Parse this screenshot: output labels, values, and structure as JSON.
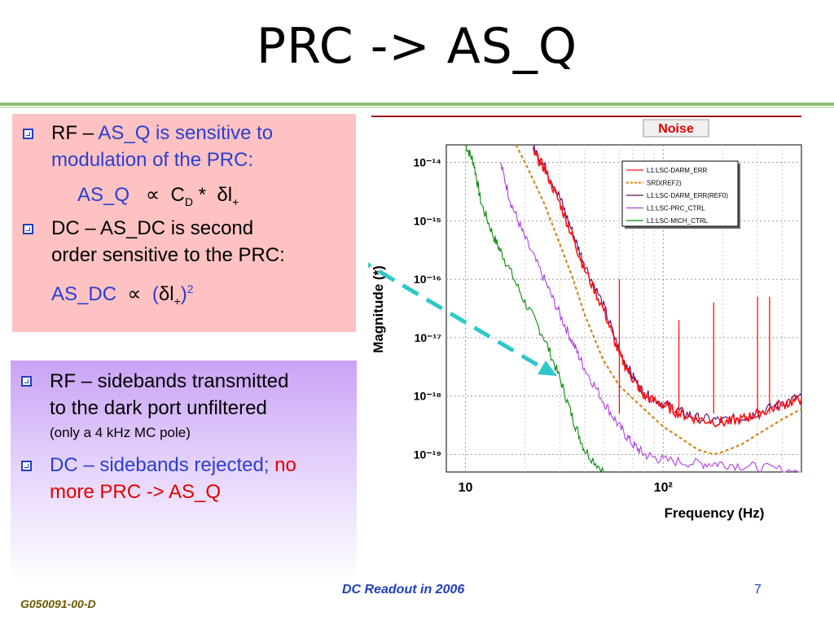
{
  "slide": {
    "title": "PRC -> AS_Q",
    "footer": "DC Readout in 2006",
    "page_number": "7",
    "doc_id": "G050091-00-D"
  },
  "box1": {
    "b1_a": "RF – ",
    "b1_b": "AS_Q is sensitive to",
    "b1_c": "modulation of the PRC:",
    "eq1_lhs": "AS_Q",
    "eq1_prop": "∝",
    "eq1_c": "C",
    "eq1_csub": "D",
    "eq1_star": " *",
    "eq1_delta": "δ",
    "eq1_l": "l",
    "eq1_lsub": "+",
    "b2_a": "DC – AS_DC is second",
    "b2_b": "order sensitive to the PRC:",
    "eq2_lhs": "AS_DC",
    "eq2_prop": "∝",
    "eq2_open": "(",
    "eq2_delta": "δ",
    "eq2_l": "l",
    "eq2_lsub": "+",
    "eq2_close": ")",
    "eq2_sup": "2"
  },
  "box2": {
    "b1_a": "RF – sidebands transmitted",
    "b1_b": "to the dark port unfiltered",
    "b1_c": "(only a 4 kHz MC pole)",
    "b2_a": "DC – sidebands rejected; ",
    "b2_b": "no",
    "b2_c": "more PRC -> AS_Q"
  },
  "chart_data": {
    "type": "line",
    "title": "Noise",
    "xlabel": "Frequency (Hz)",
    "ylabel": "Magnitude (*)",
    "x_scale": "log",
    "y_scale": "log",
    "xlim": [
      8,
      500
    ],
    "ylim": [
      5e-20,
      2e-14
    ],
    "x_ticks": [
      "10",
      "10²"
    ],
    "y_ticks": [
      "10⁻¹⁴",
      "10⁻¹⁵",
      "10⁻¹⁶",
      "10⁻¹⁷",
      "10⁻¹⁸",
      "10⁻¹⁹"
    ],
    "grid": true,
    "legend_placement": "top-right",
    "series": [
      {
        "name": "L1:LSC-DARM_ERR",
        "color": "#ff1010",
        "style": "solid",
        "x": [
          22,
          25,
          30,
          35,
          40,
          50,
          60,
          70,
          80,
          100,
          120,
          150,
          200,
          250,
          300,
          400,
          500
        ],
        "y": [
          1.5e-14,
          8e-15,
          2e-15,
          5e-16,
          1.5e-16,
          3e-17,
          5e-18,
          2e-18,
          1e-18,
          7e-19,
          5e-19,
          4e-19,
          3.5e-19,
          4e-19,
          5e-19,
          7e-19,
          9e-19
        ]
      },
      {
        "name": "SRD(REF2)",
        "color": "#d2871f",
        "style": "dashed",
        "x": [
          18,
          20,
          25,
          30,
          35,
          40,
          50,
          60,
          80,
          100,
          120,
          150,
          180,
          200,
          250,
          300,
          400,
          500
        ],
        "y": [
          2e-14,
          1e-14,
          2e-15,
          4e-16,
          1e-16,
          2.5e-17,
          4e-18,
          1.5e-18,
          6e-19,
          3e-19,
          2e-19,
          1.2e-19,
          1e-19,
          1.1e-19,
          1.5e-19,
          2.2e-19,
          4e-19,
          6e-19
        ]
      },
      {
        "name": "L1:LSC-DARM_ERR(REF0)",
        "color": "#5a0a6a",
        "style": "solid",
        "x": [
          22,
          25,
          30,
          35,
          40,
          50,
          60,
          70,
          80,
          100,
          120,
          150,
          200,
          250,
          300,
          400,
          500
        ],
        "y": [
          1.8e-14,
          9e-15,
          2.5e-15,
          6e-16,
          1.8e-16,
          3.5e-17,
          6e-18,
          2.2e-18,
          1.1e-18,
          7.5e-19,
          5.5e-19,
          4.2e-19,
          3.8e-19,
          4.2e-19,
          5.2e-19,
          7.5e-19,
          1e-18
        ]
      },
      {
        "name": "L1:LSC-PRC_CTRL",
        "color": "#b040e0",
        "style": "solid",
        "x": [
          15,
          17,
          20,
          25,
          30,
          35,
          40,
          50,
          60,
          70,
          80,
          100,
          150,
          200,
          300,
          500
        ],
        "y": [
          1e-14,
          2e-15,
          5e-16,
          1e-16,
          2.5e-17,
          8e-18,
          3e-18,
          8e-19,
          3e-19,
          1.5e-19,
          1e-19,
          8e-20,
          7e-20,
          7e-20,
          6e-20,
          5e-20
        ]
      },
      {
        "name": "L1:LSC-MICH_CTRL",
        "color": "#0a8a0a",
        "style": "solid",
        "x": [
          10,
          11,
          12,
          14,
          16,
          20,
          25,
          30,
          35,
          40,
          50
        ],
        "y": [
          2e-14,
          1e-14,
          2e-15,
          5e-16,
          2e-16,
          4e-17,
          1e-17,
          2e-18,
          4e-19,
          1.2e-19,
          5e-20
        ]
      }
    ]
  }
}
